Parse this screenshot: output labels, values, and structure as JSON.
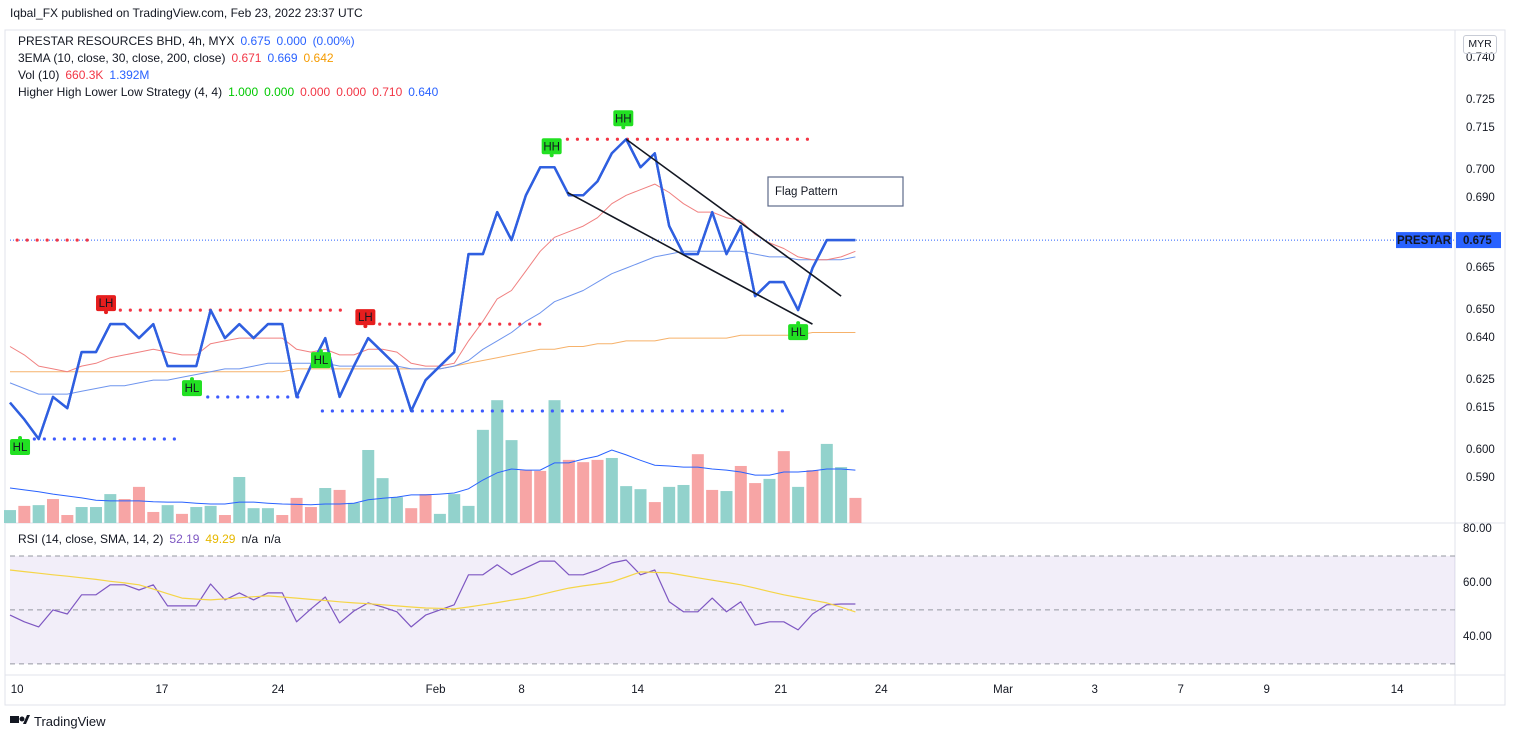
{
  "header": {
    "publisher": "Iqbal_FX published on TradingView.com, Feb 23, 2022 23:37 UTC",
    "footer": "TradingView",
    "currency": "MYR"
  },
  "legend": [
    {
      "title": "PRESTAR RESOURCES BHD, 4h, MYX",
      "items": [
        {
          "text": "0.675",
          "color": "#2962ff"
        },
        {
          "text": "0.000",
          "color": "#2962ff"
        },
        {
          "text": "(0.00%)",
          "color": "#2962ff"
        }
      ]
    },
    {
      "title": "3EMA (10, close, 30, close, 200, close)",
      "items": [
        {
          "text": "0.671",
          "color": "#f23645"
        },
        {
          "text": "0.669",
          "color": "#2962ff"
        },
        {
          "text": "0.642",
          "color": "#f59b00"
        }
      ]
    },
    {
      "title": "Vol (10)",
      "items": [
        {
          "text": "660.3K",
          "color": "#f23645"
        },
        {
          "text": "1.392M",
          "color": "#2962ff"
        }
      ]
    },
    {
      "title": "Higher High Lower Low Strategy (4, 4)",
      "items": [
        {
          "text": "1.000",
          "color": "#00c800"
        },
        {
          "text": "0.000",
          "color": "#00c800"
        },
        {
          "text": "0.000",
          "color": "#f23645"
        },
        {
          "text": "0.000",
          "color": "#f23645"
        },
        {
          "text": "0.710",
          "color": "#f23645"
        },
        {
          "text": "0.640",
          "color": "#2962ff"
        }
      ]
    }
  ],
  "rsi_legend": {
    "title": "RSI (14, close, SMA, 14, 2)",
    "items": [
      {
        "text": "52.19",
        "color": "#7e57c2"
      },
      {
        "text": "49.29",
        "color": "#e6b800"
      },
      {
        "text": "n/a",
        "color": "#131722"
      },
      {
        "text": "n/a",
        "color": "#131722"
      }
    ]
  },
  "chart_data": [
    {
      "type": "line",
      "x": [
        0,
        1,
        2,
        3,
        4,
        5,
        6,
        7,
        8,
        9,
        10,
        11,
        12,
        13,
        14,
        15,
        16,
        17,
        18,
        19,
        20,
        21,
        22,
        23,
        24,
        25,
        26,
        27,
        28,
        29,
        30,
        31,
        32,
        33,
        34,
        35,
        36,
        37,
        38,
        39,
        40,
        41,
        42,
        43,
        44,
        45,
        46,
        47,
        48,
        49,
        50,
        51,
        52,
        53,
        54,
        55,
        56,
        57,
        58,
        59
      ],
      "xlim": [
        0,
        100.84
      ],
      "xticks": [
        {
          "value": 0.5,
          "label": "10"
        },
        {
          "value": 10.6,
          "label": "17"
        },
        {
          "value": 18.7,
          "label": "24"
        },
        {
          "value": 29.7,
          "label": "Feb"
        },
        {
          "value": 35.7,
          "label": "8"
        },
        {
          "value": 43.8,
          "label": "14"
        },
        {
          "value": 53.8,
          "label": "21"
        },
        {
          "value": 60.8,
          "label": "24"
        },
        {
          "value": 69.3,
          "label": "Mar"
        },
        {
          "value": 75.7,
          "label": "3"
        },
        {
          "value": 81.7,
          "label": "7"
        },
        {
          "value": 87.7,
          "label": "9"
        },
        {
          "value": 96.8,
          "label": "14"
        }
      ],
      "ylim": [
        0.574,
        0.75
      ],
      "yticks": [
        {
          "value": 0.74,
          "label": "0.740"
        },
        0.725,
        0.715,
        {
          "value": 0.7,
          "label": "0.700"
        },
        {
          "value": 0.69,
          "label": "0.690"
        },
        0.665,
        {
          "value": 0.65,
          "label": "0.650"
        },
        {
          "value": 0.64,
          "label": "0.640"
        },
        0.625,
        0.615,
        {
          "value": 0.6,
          "label": "0.600"
        },
        {
          "value": 0.59,
          "label": "0.590"
        }
      ],
      "series": [
        {
          "color": "#2f5fe0",
          "width": 2.4,
          "values": [
            0.617,
            0.611,
            0.604,
            0.619,
            0.615,
            0.635,
            0.635,
            0.645,
            0.645,
            0.64,
            0.645,
            0.63,
            0.63,
            0.63,
            0.65,
            0.64,
            0.645,
            0.64,
            0.645,
            0.645,
            0.619,
            0.63,
            0.64,
            0.619,
            0.63,
            0.64,
            0.635,
            0.63,
            0.614,
            0.625,
            0.63,
            0.635,
            0.67,
            0.67,
            0.685,
            0.675,
            0.691,
            0.701,
            0.701,
            0.691,
            0.691,
            0.696,
            0.706,
            0.711,
            0.701,
            0.706,
            0.68,
            0.67,
            0.67,
            0.685,
            0.67,
            0.68,
            0.655,
            0.66,
            0.66,
            0.65,
            0.665,
            0.675,
            0.675,
            0.675
          ]
        },
        {
          "color": "#f08080",
          "width": 1,
          "values": [
            0.637,
            0.634,
            0.63,
            0.629,
            0.628,
            0.63,
            0.631,
            0.633,
            0.634,
            0.635,
            0.636,
            0.635,
            0.634,
            0.634,
            0.638,
            0.639,
            0.64,
            0.64,
            0.64,
            0.64,
            0.636,
            0.635,
            0.636,
            0.634,
            0.634,
            0.636,
            0.636,
            0.635,
            0.631,
            0.63,
            0.63,
            0.631,
            0.639,
            0.646,
            0.654,
            0.657,
            0.664,
            0.671,
            0.676,
            0.678,
            0.68,
            0.683,
            0.688,
            0.691,
            0.693,
            0.695,
            0.692,
            0.688,
            0.685,
            0.685,
            0.683,
            0.682,
            0.677,
            0.674,
            0.672,
            0.669,
            0.668,
            0.668,
            0.669,
            0.671
          ]
        },
        {
          "color": "#6f95ee",
          "width": 1,
          "values": [
            0.624,
            0.622,
            0.62,
            0.62,
            0.62,
            0.621,
            0.622,
            0.623,
            0.623,
            0.624,
            0.625,
            0.625,
            0.626,
            0.627,
            0.628,
            0.629,
            0.629,
            0.63,
            0.631,
            0.631,
            0.631,
            0.631,
            0.631,
            0.63,
            0.63,
            0.63,
            0.63,
            0.63,
            0.629,
            0.629,
            0.629,
            0.63,
            0.632,
            0.636,
            0.639,
            0.642,
            0.646,
            0.649,
            0.653,
            0.655,
            0.657,
            0.66,
            0.663,
            0.665,
            0.667,
            0.669,
            0.67,
            0.671,
            0.671,
            0.671,
            0.671,
            0.671,
            0.67,
            0.669,
            0.669,
            0.668,
            0.668,
            0.668,
            0.668,
            0.669
          ]
        },
        {
          "color": "#f6b26b",
          "width": 1,
          "values": [
            0.628,
            0.628,
            0.628,
            0.628,
            0.628,
            0.628,
            0.628,
            0.628,
            0.628,
            0.628,
            0.628,
            0.628,
            0.628,
            0.628,
            0.628,
            0.628,
            0.628,
            0.628,
            0.628,
            0.628,
            0.629,
            0.629,
            0.629,
            0.629,
            0.629,
            0.629,
            0.629,
            0.629,
            0.629,
            0.629,
            0.629,
            0.63,
            0.631,
            0.632,
            0.633,
            0.634,
            0.635,
            0.636,
            0.636,
            0.637,
            0.637,
            0.638,
            0.638,
            0.639,
            0.639,
            0.639,
            0.64,
            0.64,
            0.64,
            0.64,
            0.64,
            0.641,
            0.641,
            0.641,
            0.641,
            0.641,
            0.642,
            0.642,
            0.642,
            0.642
          ]
        }
      ],
      "levels": [
        {
          "value": 0.675,
          "from": 0.5,
          "to": 5.7,
          "color": "#f23645"
        },
        {
          "value": 0.65,
          "from": 7.7,
          "to": 23.7,
          "color": "#f23645"
        },
        {
          "value": 0.645,
          "from": 25.8,
          "to": 37,
          "color": "#f23645"
        },
        {
          "value": 0.711,
          "from": 38.9,
          "to": 56,
          "color": "#f23645"
        },
        {
          "value": 0.604,
          "from": 1.7,
          "to": 11.9,
          "color": "#3d5afe"
        },
        {
          "value": 0.619,
          "from": 13.8,
          "to": 20.7,
          "color": "#3d5afe"
        },
        {
          "value": 0.614,
          "from": 21.8,
          "to": 54.1,
          "color": "#3d5afe"
        }
      ],
      "markers": [
        {
          "label": "HH",
          "x": 37.8,
          "value": 0.701,
          "color": "#22e022",
          "pos": "above"
        },
        {
          "label": "HH",
          "x": 42.8,
          "value": 0.711,
          "color": "#22e022",
          "pos": "above"
        },
        {
          "label": "LH",
          "x": 6.7,
          "value": 0.645,
          "color": "#e61e1e",
          "pos": "above"
        },
        {
          "label": "LH",
          "x": 24.8,
          "value": 0.64,
          "color": "#e61e1e",
          "pos": "above"
        },
        {
          "label": "HL",
          "x": 0.7,
          "value": 0.609,
          "color": "#22e022",
          "pos": "below"
        },
        {
          "label": "HL",
          "x": 12.7,
          "value": 0.63,
          "color": "#22e022",
          "pos": "below"
        },
        {
          "label": "HL",
          "x": 21.7,
          "value": 0.64,
          "color": "#22e022",
          "pos": "below"
        },
        {
          "label": "HL",
          "x": 55,
          "value": 0.65,
          "color": "#22e022",
          "pos": "below"
        }
      ],
      "trendlines": [
        {
          "from": [
            38.9,
            0.692
          ],
          "to": [
            56,
            0.645
          ]
        },
        {
          "from": [
            43,
            0.711
          ],
          "to": [
            58,
            0.655
          ]
        }
      ],
      "annotation": "Flag Pattern",
      "last_price": {
        "name": "PRESTAR",
        "value": 0.675,
        "color": "#2962ff"
      }
    },
    {
      "type": "bar",
      "ylim": [
        0,
        12966
      ],
      "colors": {
        "up": "#92d2cc",
        "down": "#f7a5a5"
      },
      "direction": [
        "up",
        "down",
        "up",
        "down",
        "down",
        "up",
        "up",
        "up",
        "down",
        "down",
        "down",
        "up",
        "down",
        "up",
        "up",
        "down",
        "up",
        "up",
        "up",
        "down",
        "down",
        "down",
        "up",
        "down",
        "up",
        "up",
        "up",
        "up",
        "down",
        "down",
        "up",
        "up",
        "up",
        "up",
        "up",
        "up",
        "down",
        "down",
        "up",
        "down",
        "down",
        "down",
        "up",
        "up",
        "up",
        "down",
        "up",
        "up",
        "down",
        "down",
        "up",
        "down",
        "down",
        "up",
        "down",
        "up",
        "down",
        "up",
        "up",
        "down"
      ],
      "values": [
        340,
        450,
        470,
        630,
        210,
        420,
        420,
        760,
        630,
        950,
        290,
        470,
        240,
        420,
        450,
        210,
        1210,
        390,
        390,
        210,
        660,
        420,
        920,
        870,
        530,
        1920,
        1180,
        680,
        390,
        760,
        240,
        760,
        450,
        2450,
        3230,
        2180,
        1390,
        1370,
        3230,
        1660,
        1600,
        1660,
        1710,
        970,
        890,
        550,
        950,
        1000,
        1810,
        870,
        840,
        1500,
        1050,
        1160,
        1890,
        950,
        1390,
        2080,
        1470,
        660.3
      ],
      "line": {
        "color": "#2962ff",
        "values": [
          920,
          870,
          820,
          760,
          710,
          660,
          600,
          580,
          580,
          580,
          560,
          550,
          550,
          520,
          500,
          500,
          550,
          550,
          520,
          500,
          490,
          480,
          500,
          500,
          520,
          610,
          650,
          680,
          740,
          740,
          760,
          790,
          900,
          1130,
          1320,
          1420,
          1390,
          1390,
          1580,
          1580,
          1680,
          1760,
          1920,
          1790,
          1650,
          1520,
          1500,
          1470,
          1470,
          1420,
          1390,
          1340,
          1260,
          1260,
          1340,
          1340,
          1370,
          1420,
          1420,
          1392
        ]
      }
    },
    {
      "type": "line",
      "ylim": [
        25.9,
        82.2
      ],
      "yticks": [
        {
          "value": 80,
          "label": "80.00"
        },
        {
          "value": 60,
          "label": "60.00"
        },
        {
          "value": 40,
          "label": "40.00"
        }
      ],
      "band": [
        30,
        70
      ],
      "midline": 50,
      "band_color": "#7e57c2",
      "series": [
        {
          "color": "#7e57c2",
          "values": [
            48.1,
            45.6,
            43.7,
            50.0,
            48.5,
            55.6,
            55.6,
            59.3,
            59.3,
            57.4,
            59.3,
            51.5,
            51.5,
            51.5,
            59.6,
            53.7,
            56.3,
            53.7,
            56.3,
            56.3,
            45.6,
            50.4,
            54.8,
            45.2,
            49.6,
            52.6,
            51.1,
            49.3,
            43.7,
            48.1,
            50.0,
            51.9,
            63.0,
            63.0,
            66.7,
            63.0,
            65.6,
            68.1,
            68.1,
            63.0,
            63.0,
            64.8,
            67.4,
            68.5,
            63.0,
            64.8,
            53.0,
            49.3,
            49.3,
            54.4,
            49.3,
            53.0,
            44.4,
            45.6,
            45.6,
            42.6,
            48.5,
            51.9,
            52.2,
            52.19
          ]
        },
        {
          "color": "#f5d547",
          "values": [
            64.8,
            64.2,
            63.6,
            63.0,
            62.5,
            61.9,
            61.3,
            60.6,
            60.0,
            59.3,
            57.7,
            56.0,
            54.4,
            54.0,
            53.7,
            54.1,
            54.5,
            54.9,
            55.2,
            54.8,
            54.4,
            53.9,
            53.5,
            53.0,
            52.6,
            52.3,
            51.9,
            51.5,
            51.1,
            50.7,
            50.6,
            50.4,
            51.1,
            51.9,
            52.7,
            53.6,
            54.4,
            55.6,
            56.9,
            58.1,
            58.9,
            59.6,
            60.4,
            62.2,
            64.1,
            63.9,
            63.7,
            62.8,
            61.9,
            61.0,
            60.2,
            59.3,
            58.1,
            56.8,
            55.6,
            54.6,
            53.6,
            52.6,
            51.0,
            49.29
          ]
        }
      ]
    }
  ]
}
